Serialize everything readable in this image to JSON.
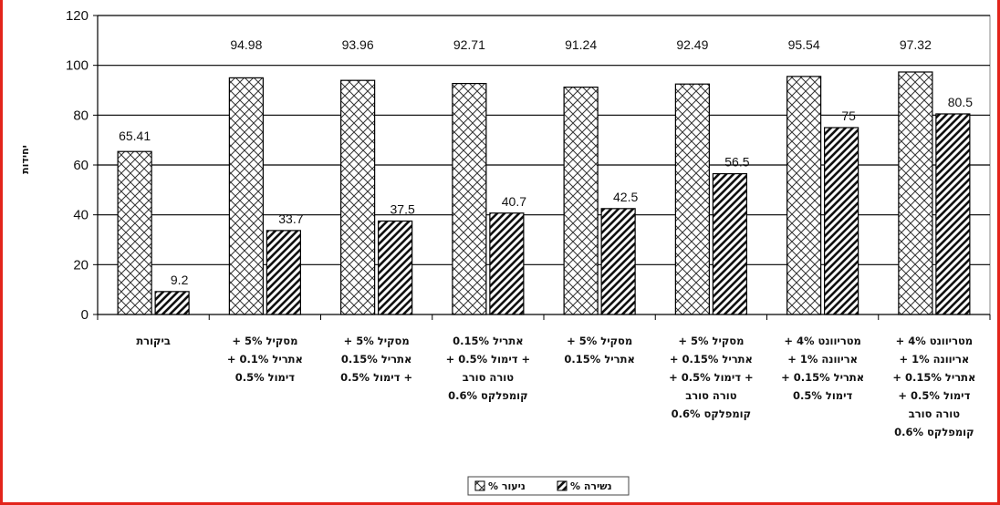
{
  "chart_data": {
    "type": "bar",
    "ylabel": "יחידות",
    "ylim": [
      0,
      120
    ],
    "yticks": [
      "0",
      "20",
      "40",
      "60",
      "80",
      "100",
      "120"
    ],
    "grid": "horizontal",
    "legend_position": "bottom",
    "categories": [
      [
        "ביקורת"
      ],
      [
        "מסקיל 5% +",
        "אתריל 0.1% +",
        "דימול 0.5%"
      ],
      [
        "מסקיל 5% +",
        "אתריל 0.15%",
        "+ דימול 0.5%"
      ],
      [
        "אתריל 0.15%",
        "+ דימול 0.5% +",
        "טורה סורב",
        "קומפלקס 0.6%"
      ],
      [
        "מסקיל 5% +",
        "אתריל 0.15%"
      ],
      [
        "מסקיל 5% +",
        "אתריל 0.15% +",
        "+ דימול 0.5% +",
        "טורה סורב",
        "קומפלקס 0.6%"
      ],
      [
        "מטריוונט 4% +",
        "אריוונה 1% +",
        "אתריל 0.15% +",
        "דימול 0.5%"
      ],
      [
        "מטריוונט 4% +",
        "אריוונה 1% +",
        "אתריל 0.15% +",
        "דימול 0.5% +",
        "טורה סורב",
        "קומפלקס 0.6%"
      ]
    ],
    "series": [
      {
        "name": "% ניעור",
        "pattern": "crosshatch",
        "values": [
          65.41,
          94.98,
          93.96,
          92.71,
          91.24,
          92.49,
          95.54,
          97.32
        ],
        "labels": [
          "65.41",
          "94.98",
          "93.96",
          "92.71",
          "91.24",
          "92.49",
          "95.54",
          "97.32"
        ]
      },
      {
        "name": "% נשירה",
        "pattern": "diagonal",
        "values": [
          9.2,
          33.7,
          37.5,
          40.7,
          42.5,
          56.5,
          75,
          80.5
        ],
        "labels": [
          "9.2",
          "33.7",
          "37.5",
          "40.7",
          "42.5",
          "56.5",
          "75",
          "80.5"
        ]
      }
    ]
  }
}
